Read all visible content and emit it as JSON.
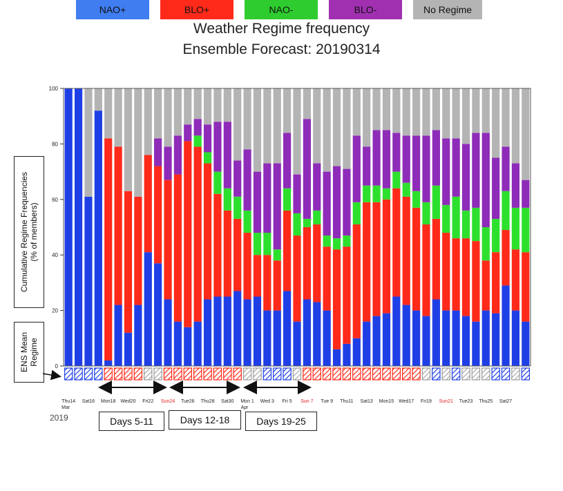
{
  "title_line1": "Weather Regime frequency",
  "title_line2": "Ensemble Forecast: 20190314",
  "colors": {
    "NAO+": "#1f3fe6",
    "BLO+": "#ff2a1a",
    "NAO-": "#2ee02e",
    "BLO-": "#8e2bb8",
    "No Regime": "#b4b4b4"
  },
  "legend": [
    {
      "label": "NAO+",
      "color": "#3f7df0"
    },
    {
      "label": "BLO+",
      "color": "#ff2a1a"
    },
    {
      "label": "NAO-",
      "color": "#2ecc2e"
    },
    {
      "label": "BLO-",
      "color": "#a030b0"
    },
    {
      "label": "No Regime",
      "color": "#b4b4b4"
    }
  ],
  "ylabel_main": [
    "Cumulative Regime Frequencies",
    "(% of members)"
  ],
  "ylabel_mean": [
    "ENS Mean",
    "Regime"
  ],
  "year_label": "2019",
  "days_boxes": [
    "Days 5-11",
    "Days 12-18",
    "Days 19-25"
  ],
  "chart_data": {
    "type": "bar",
    "stacked": true,
    "ylim": [
      0,
      100
    ],
    "yticks": [
      0,
      20,
      40,
      60,
      80,
      100
    ],
    "xtick_labels": [
      {
        "label": "Thu14",
        "sub": "Mar",
        "color": "#222"
      },
      {
        "label": "Sat16",
        "color": "#222"
      },
      {
        "label": "Mon18",
        "color": "#222"
      },
      {
        "label": "Wed20",
        "color": "#222"
      },
      {
        "label": "Fri22",
        "color": "#222"
      },
      {
        "label": "Sun24",
        "color": "#e02020"
      },
      {
        "label": "Tue26",
        "color": "#222"
      },
      {
        "label": "Thu28",
        "color": "#222"
      },
      {
        "label": "Sat30",
        "color": "#222"
      },
      {
        "label": "Mon 1",
        "sub": "Apr",
        "color": "#222"
      },
      {
        "label": "Wed 3",
        "color": "#222"
      },
      {
        "label": "Fri 5",
        "color": "#222"
      },
      {
        "label": "Sun 7",
        "color": "#e02020"
      },
      {
        "label": "Tue 9",
        "color": "#222"
      },
      {
        "label": "Thu11",
        "color": "#222"
      },
      {
        "label": "Sat13",
        "color": "#222"
      },
      {
        "label": "Mon15",
        "color": "#222"
      },
      {
        "label": "Wed17",
        "color": "#222"
      },
      {
        "label": "Fri19",
        "color": "#222"
      },
      {
        "label": "Sun21",
        "color": "#e02020"
      },
      {
        "label": "Tue23",
        "color": "#222"
      },
      {
        "label": "Thu25",
        "color": "#222"
      },
      {
        "label": "Sat27",
        "color": "#222"
      }
    ],
    "series_order": [
      "NAO+",
      "BLO+",
      "NAO-",
      "BLO-",
      "No Regime"
    ],
    "values": [
      [
        100,
        0,
        0,
        0,
        0
      ],
      [
        100,
        0,
        0,
        0,
        0
      ],
      [
        61,
        0,
        0,
        0,
        39
      ],
      [
        92,
        0,
        0,
        0,
        8
      ],
      [
        2,
        80,
        0,
        0,
        18
      ],
      [
        22,
        57,
        0,
        0,
        21
      ],
      [
        12,
        51,
        0,
        0,
        37
      ],
      [
        22,
        39,
        0,
        0,
        39
      ],
      [
        41,
        35,
        0,
        0,
        24
      ],
      [
        37,
        35,
        0,
        10,
        18
      ],
      [
        24,
        43,
        0,
        12,
        21
      ],
      [
        16,
        53,
        0,
        14,
        17
      ],
      [
        14,
        67,
        0,
        6,
        13
      ],
      [
        16,
        63,
        4,
        6,
        11
      ],
      [
        24,
        49,
        4,
        10,
        13
      ],
      [
        25,
        37,
        8,
        18,
        12
      ],
      [
        25,
        31,
        8,
        24,
        12
      ],
      [
        27,
        26,
        8,
        13,
        26
      ],
      [
        24,
        24,
        8,
        22,
        22
      ],
      [
        25,
        15,
        8,
        22,
        30
      ],
      [
        20,
        20,
        8,
        25,
        27
      ],
      [
        20,
        18,
        4,
        31,
        27
      ],
      [
        27,
        29,
        8,
        20,
        16
      ],
      [
        16,
        31,
        8,
        14,
        31
      ],
      [
        24,
        26,
        3,
        36,
        11
      ],
      [
        23,
        28,
        5,
        17,
        27
      ],
      [
        20,
        23,
        4,
        23,
        30
      ],
      [
        6,
        36,
        4,
        26,
        28
      ],
      [
        8,
        35,
        4,
        24,
        29
      ],
      [
        10,
        41,
        8,
        24,
        17
      ],
      [
        16,
        43,
        6,
        14,
        21
      ],
      [
        18,
        41,
        6,
        20,
        15
      ],
      [
        19,
        41,
        4,
        21,
        15
      ],
      [
        25,
        39,
        6,
        14,
        16
      ],
      [
        22,
        39,
        5,
        17,
        17
      ],
      [
        20,
        37,
        6,
        20,
        17
      ],
      [
        18,
        33,
        8,
        24,
        17
      ],
      [
        24,
        29,
        12,
        20,
        15
      ],
      [
        20,
        28,
        10,
        24,
        18
      ],
      [
        20,
        26,
        15,
        21,
        18
      ],
      [
        18,
        28,
        10,
        24,
        20
      ],
      [
        16,
        29,
        12,
        27,
        16
      ],
      [
        20,
        18,
        12,
        34,
        16
      ],
      [
        19,
        22,
        12,
        22,
        25
      ],
      [
        29,
        20,
        14,
        16,
        21
      ],
      [
        20,
        22,
        15,
        16,
        27
      ],
      [
        16,
        25,
        16,
        10,
        33
      ]
    ],
    "ens_mean_regime": [
      "NAO+",
      "NAO+",
      "NAO+",
      "NAO+",
      "BLO+",
      "BLO+",
      "BLO+",
      "BLO+",
      "No Regime",
      "No Regime",
      "BLO+",
      "BLO+",
      "BLO+",
      "BLO+",
      "BLO+",
      "BLO+",
      "BLO+",
      "BLO+",
      "No Regime",
      "No Regime",
      "NAO+",
      "NAO+",
      "NAO+",
      "No Regime",
      "BLO+",
      "BLO+",
      "BLO+",
      "BLO+",
      "BLO+",
      "BLO+",
      "BLO+",
      "BLO+",
      "BLO+",
      "BLO+",
      "BLO+",
      "BLO+",
      "No Regime",
      "NAO+",
      "No Regime",
      "NAO+",
      "No Regime",
      "No Regime",
      "No Regime",
      "NAO+",
      "NAO+",
      "No Regime",
      "NAO+"
    ]
  }
}
